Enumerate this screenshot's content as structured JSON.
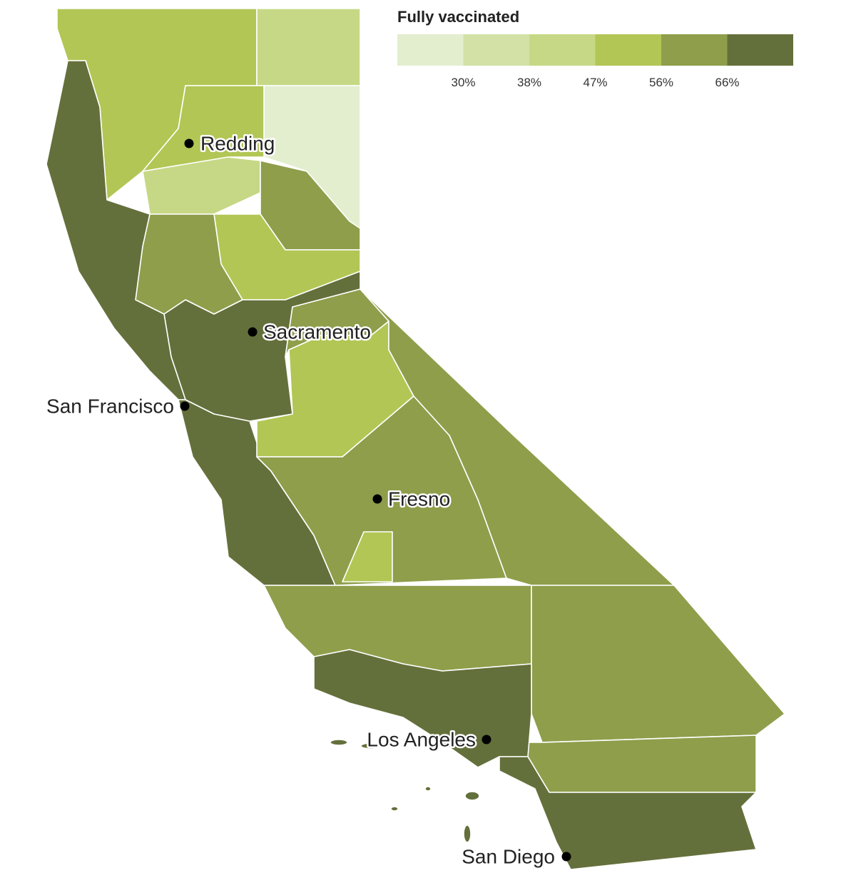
{
  "legend": {
    "title": "Fully vaccinated",
    "colors": [
      "#e3eecf",
      "#d3e1a6",
      "#c6d885",
      "#b2c655",
      "#8e9e4b",
      "#64703b"
    ],
    "ticks": [
      {
        "value": 30,
        "label": "30%"
      },
      {
        "value": 38,
        "label": "38%"
      },
      {
        "value": 47,
        "label": "47%"
      },
      {
        "value": 56,
        "label": "56%"
      },
      {
        "value": 66,
        "label": "66%"
      }
    ]
  },
  "cities": [
    {
      "name": "Redding"
    },
    {
      "name": "Sacramento"
    },
    {
      "name": "San Francisco"
    },
    {
      "name": "Fresno"
    },
    {
      "name": "Los Angeles"
    },
    {
      "name": "San Diego"
    }
  ]
}
